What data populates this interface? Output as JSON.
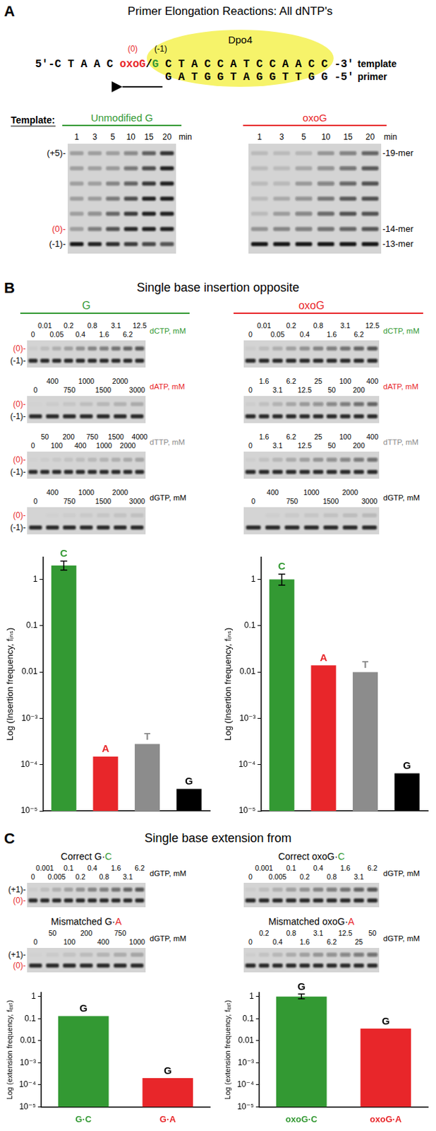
{
  "figure": {
    "A": {
      "letter": "A",
      "title": "Primer Elongation Reactions: All dNTP's",
      "enzyme": "Dpo4",
      "position_labels": [
        "(0)",
        "(-1)"
      ],
      "template": [
        "5'-C T A A C ",
        "oxoG",
        "/",
        "G",
        " C T A C C A T C C A A C C -3'"
      ],
      "template_name": "template",
      "primer": "G A T G G T A G G T T G G -5'",
      "primer_name": "primer",
      "template_label": "Template:",
      "gels": [
        {
          "title": "Unmodified G",
          "color": "#339933",
          "lanes": [
            "1",
            "3",
            "5",
            "10",
            "15",
            "20"
          ],
          "unit": "min",
          "band_labels": [
            "(+5)-",
            "(0)-",
            "(-1)-"
          ]
        },
        {
          "title": "oxoG",
          "color": "#e8262a",
          "lanes": [
            "1",
            "3",
            "5",
            "10",
            "15",
            "20"
          ],
          "unit": "min",
          "band_labels": [
            "-19-mer",
            "-14-mer",
            "-13-mer"
          ]
        }
      ]
    },
    "B": {
      "letter": "B",
      "title": "Single base insertion opposite",
      "band_labels": [
        "(0)-",
        "(-1)-"
      ],
      "columns": [
        {
          "title": "G",
          "color": "#339933",
          "gels": [
            {
              "nucleotide": "dCTP, mM",
              "color": "#339933",
              "lanes": [
                "0",
                "0.01",
                "0.05",
                "0.2",
                "0.4",
                "0.8",
                "1.6",
                "3.1",
                "6.2",
                "12.5"
              ]
            },
            {
              "nucleotide": "dATP, mM",
              "color": "#e8262a",
              "lanes": [
                "0",
                "400",
                "750",
                "1000",
                "1500",
                "2000",
                "3000"
              ]
            },
            {
              "nucleotide": "dTTP, mM",
              "color": "#8c8c8c",
              "lanes": [
                "0",
                "50",
                "100",
                "200",
                "400",
                "750",
                "1000",
                "1500",
                "2000",
                "4000"
              ]
            },
            {
              "nucleotide": "dGTP, mM",
              "color": "#000000",
              "lanes": [
                "0",
                "400",
                "750",
                "1000",
                "1500",
                "2000",
                "3000"
              ]
            }
          ]
        },
        {
          "title": "oxoG",
          "color": "#e8262a",
          "gels": [
            {
              "nucleotide": "dCTP, mM",
              "color": "#339933",
              "lanes": [
                "0",
                "0.01",
                "0.05",
                "0.2",
                "0.4",
                "0.8",
                "1.6",
                "3.1",
                "6.2",
                "12.5"
              ]
            },
            {
              "nucleotide": "dATP, mM",
              "color": "#e8262a",
              "lanes": [
                "0",
                "1.6",
                "3.1",
                "6.2",
                "12.5",
                "25",
                "50",
                "100",
                "200",
                "400"
              ]
            },
            {
              "nucleotide": "dTTP, mM",
              "color": "#8c8c8c",
              "lanes": [
                "0",
                "1.6",
                "3.1",
                "6.2",
                "12.5",
                "25",
                "50",
                "100",
                "200",
                "400"
              ]
            },
            {
              "nucleotide": "dGTP, mM",
              "color": "#000000",
              "lanes": [
                "0",
                "400",
                "750",
                "1000",
                "1500",
                "2000",
                "3000"
              ]
            }
          ]
        }
      ]
    },
    "C": {
      "letter": "C",
      "title": "Single base extension from",
      "band_labels": [
        "(+1)-",
        "(0)-"
      ],
      "columns": [
        {
          "gels": [
            {
              "title": [
                "Correct G·",
                "C"
              ],
              "color": "#339933",
              "nucleotide": "dGTP, mM",
              "lanes": [
                "0",
                "0.001",
                "0.005",
                "0.1",
                "0.2",
                "0.4",
                "0.8",
                "1.6",
                "3.1",
                "6.2"
              ]
            },
            {
              "title": [
                "Mismatched G·",
                "A"
              ],
              "color": "#e8262a",
              "nucleotide": "dGTP, mM",
              "lanes": [
                "0",
                "50",
                "100",
                "200",
                "400",
                "750",
                "1000"
              ]
            }
          ]
        },
        {
          "gels": [
            {
              "title": [
                "Correct oxoG·",
                "C"
              ],
              "color": "#339933",
              "nucleotide": "dGTP, mM",
              "lanes": [
                "0",
                "0.001",
                "0.005",
                "0.1",
                "0.2",
                "0.4",
                "0.8",
                "1.6",
                "3.1",
                "6.2"
              ]
            },
            {
              "title": [
                "Mismatched oxoG·",
                "A"
              ],
              "color": "#e8262a",
              "nucleotide": "dGTP, mM",
              "lanes": [
                "0",
                "0.2",
                "0.4",
                "0.8",
                "1.6",
                "3.1",
                "6.2",
                "12.5",
                "25",
                "50"
              ]
            }
          ]
        }
      ]
    }
  },
  "chart_data": [
    {
      "type": "bar",
      "categories": [
        "C",
        "A",
        "T",
        "G"
      ],
      "values": [
        2.0,
        0.00015,
        0.00028,
        3e-05
      ],
      "colors": [
        "#339933",
        "#e8262a",
        "#8c8c8c",
        "#000000"
      ],
      "errors": [
        [
          1.6,
          2.5
        ],
        null,
        null,
        null
      ],
      "y_label": "Log (Insertion frequency, fᵢₙₛ)",
      "log": "y",
      "grid": false,
      "tick_labels": "y",
      "ylim": [
        1e-05,
        3
      ],
      "yticks": [
        {
          "value": 1e-05,
          "label": "10⁻⁵"
        },
        {
          "value": 0.0001,
          "label": "10⁻⁴"
        },
        {
          "value": 0.001,
          "label": "10⁻³"
        },
        0.01,
        0.1,
        1
      ]
    },
    {
      "type": "bar",
      "categories": [
        "C",
        "A",
        "T",
        "G"
      ],
      "values": [
        1.0,
        0.014,
        0.01,
        6.5e-05
      ],
      "colors": [
        "#339933",
        "#e8262a",
        "#8c8c8c",
        "#000000"
      ],
      "errors": [
        [
          0.75,
          1.3
        ],
        null,
        null,
        null
      ],
      "y_label": "Log (Insertion frequency, fᵢₙₛ)",
      "log": "y",
      "grid": false,
      "tick_labels": "y",
      "ylim": [
        1e-05,
        3
      ],
      "yticks": [
        {
          "value": 1e-05,
          "label": "10⁻⁵"
        },
        {
          "value": 0.0001,
          "label": "10⁻⁴"
        },
        {
          "value": 0.001,
          "label": "10⁻³"
        },
        0.01,
        0.1,
        1
      ]
    },
    {
      "type": "bar",
      "categories": [
        "G·C",
        "G·A"
      ],
      "values": [
        0.13,
        0.0002
      ],
      "colors": [
        "#339933",
        "#e8262a"
      ],
      "annotations": [
        "G",
        "G"
      ],
      "y_label": "Log (extension frequency, fₑₓₜ)",
      "log": "y",
      "grid": false,
      "ylim": [
        1e-05,
        1.5
      ],
      "yticks": [
        {
          "value": 1e-05,
          "label": "10⁻⁵"
        },
        {
          "value": 0.0001,
          "label": "10⁻⁴"
        },
        {
          "value": 0.001,
          "label": "10⁻³"
        },
        0.01,
        0.1,
        1
      ]
    },
    {
      "type": "bar",
      "categories": [
        "oxoG·C",
        "oxoG·A"
      ],
      "values": [
        1.0,
        0.035
      ],
      "colors": [
        "#339933",
        "#e8262a"
      ],
      "errors": [
        [
          0.8,
          1.3
        ],
        null
      ],
      "annotations": [
        "G",
        "G"
      ],
      "y_label": "Log (extension frequency, fₑₓₜ)",
      "log": "y",
      "grid": false,
      "ylim": [
        1e-05,
        1.5
      ],
      "yticks": [
        {
          "value": 1e-05,
          "label": "10⁻⁵"
        },
        {
          "value": 0.0001,
          "label": "10⁻⁴"
        },
        {
          "value": 0.001,
          "label": "10⁻³"
        },
        0.01,
        0.1,
        1
      ]
    }
  ]
}
